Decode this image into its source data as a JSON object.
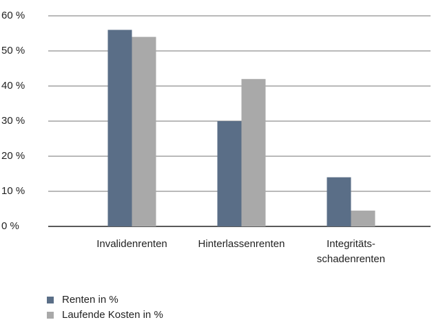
{
  "chart_data": {
    "type": "bar",
    "categories": [
      "Invalidenrenten",
      "Hinterlassenrenten",
      "Integritäts-\nschadenrenten"
    ],
    "series": [
      {
        "name": "Renten in %",
        "color": "#5a6e87",
        "values": [
          56,
          30,
          14
        ]
      },
      {
        "name": "Laufende Kosten in %",
        "color": "#a9a9a9",
        "values": [
          54,
          42,
          4.5
        ]
      }
    ],
    "ylim": [
      0,
      60
    ],
    "yticks": [
      {
        "value": 0,
        "label": "0 %"
      },
      {
        "value": 10,
        "label": "10 %"
      },
      {
        "value": 20,
        "label": "20 %"
      },
      {
        "value": 30,
        "label": "30 %"
      },
      {
        "value": 40,
        "label": "40 %"
      },
      {
        "value": 50,
        "label": "50 %"
      },
      {
        "value": 60,
        "label": "60 %"
      }
    ],
    "grid": true,
    "legend": "bottom-left"
  }
}
